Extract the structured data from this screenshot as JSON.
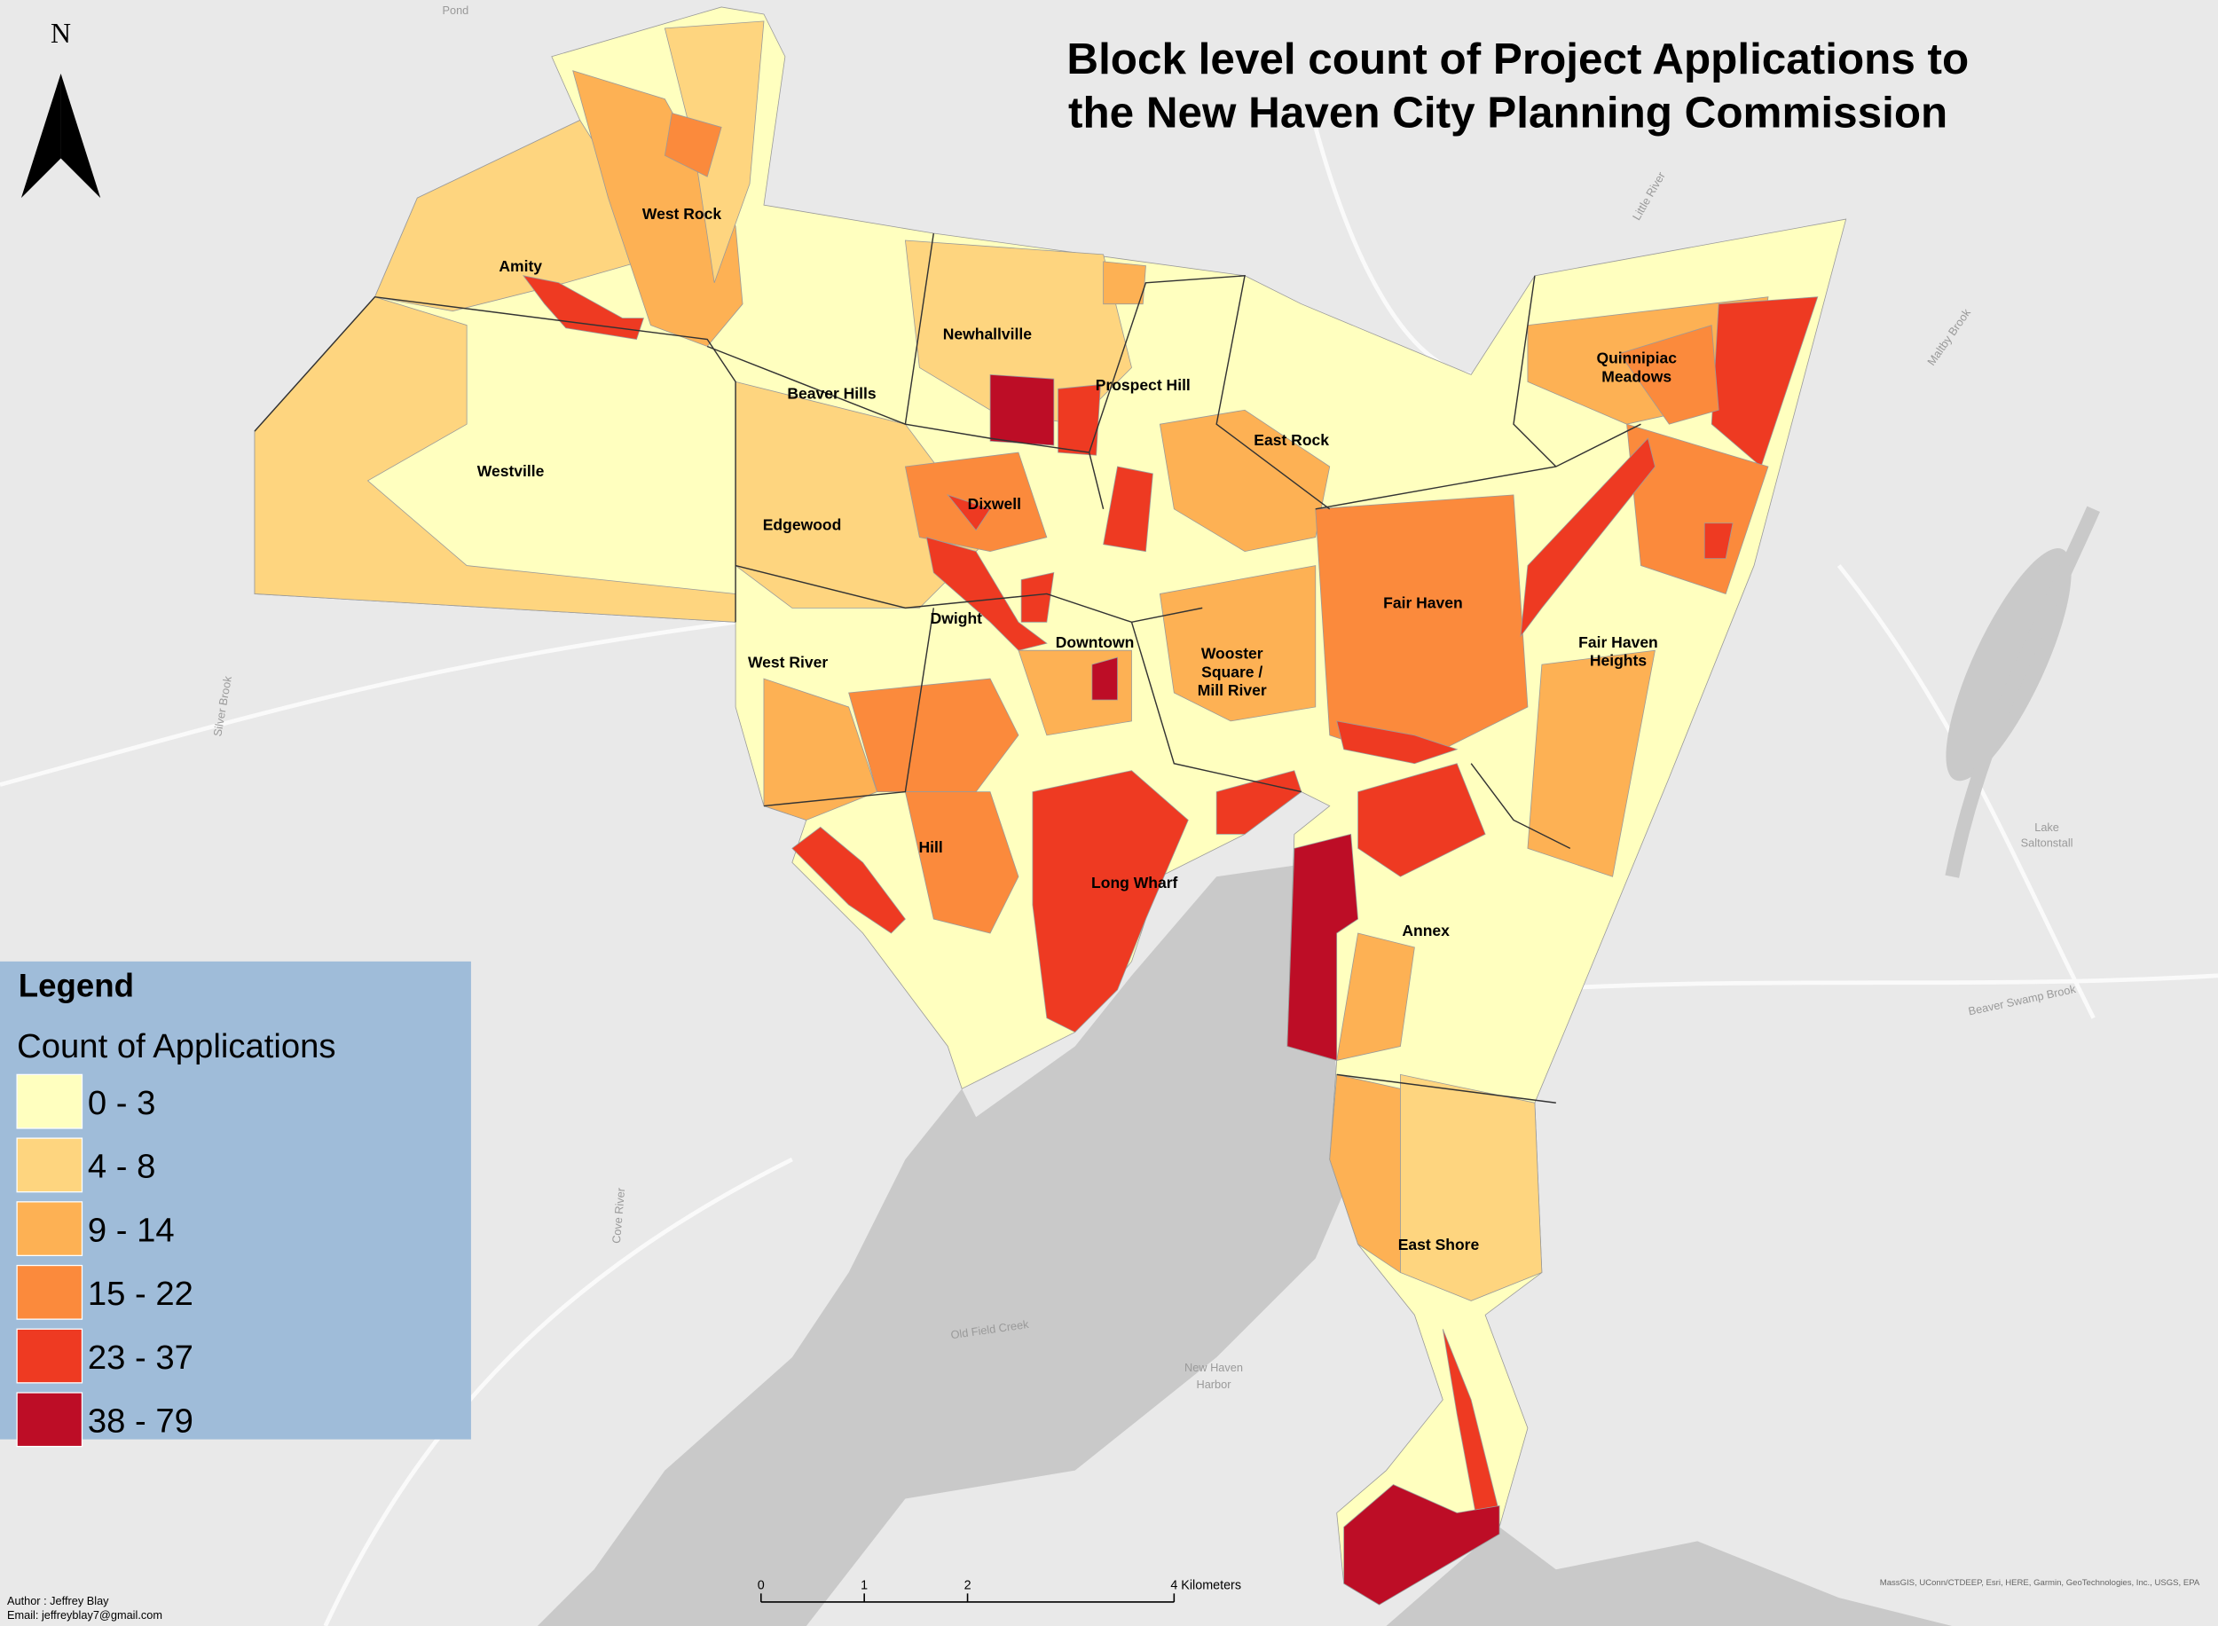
{
  "title": [
    "Block level count of Project Applications to",
    "the New Haven City Planning Commission"
  ],
  "north_label": "N",
  "neighborhoods": [
    [
      "West Rock"
    ],
    [
      "Amity"
    ],
    [
      "Newhallville"
    ],
    [
      "Beaver Hills"
    ],
    [
      "Prospect Hill"
    ],
    [
      "Westville"
    ],
    [
      "East Rock"
    ],
    [
      "Dixwell"
    ],
    [
      "Edgewood"
    ],
    [
      "Dwight"
    ],
    [
      "Downtown"
    ],
    [
      "West River"
    ],
    [
      "Wooster",
      "Square /",
      "Mill River"
    ],
    [
      "Fair Haven"
    ],
    [
      "Fair Haven",
      "Heights"
    ],
    [
      "Quinnipiac",
      "Meadows"
    ],
    [
      "Hill"
    ],
    [
      "Long Wharf"
    ],
    [
      "Annex"
    ],
    [
      "East Shore"
    ]
  ],
  "water_labels": [
    [
      "Pond"
    ],
    [
      "Little River"
    ],
    [
      "Maltby Brook"
    ],
    [
      "Lake",
      "Saltonstall"
    ],
    [
      "Beaver Swamp Brook"
    ],
    [
      "Old Field Creek"
    ],
    [
      "New Haven",
      "Harbor"
    ],
    [
      "Cove River"
    ],
    [
      "Silver Brook"
    ]
  ],
  "legend": {
    "heading": "Legend",
    "title": "Count of Applications",
    "classes": [
      {
        "label": "0 - 3",
        "color": "#ffffbf"
      },
      {
        "label": "4 - 8",
        "color": "#fed57f"
      },
      {
        "label": "9 - 14",
        "color": "#fdb154"
      },
      {
        "label": "15 - 22",
        "color": "#fb8a3c"
      },
      {
        "label": "23 - 37",
        "color": "#ee3a22"
      },
      {
        "label": "38 - 79",
        "color": "#bd0d26"
      }
    ]
  },
  "scale_bar": {
    "ticks": [
      0,
      1,
      2,
      4
    ],
    "unit": "Kilometers"
  },
  "author": "Author : Jeffrey Blay",
  "email": "Email: jeffreyblay7@gmail.com",
  "attribution": "MassGIS, UConn/CTDEEP, Esri, HERE, Garmin, GeoTechnologies, Inc., USGS, EPA"
}
